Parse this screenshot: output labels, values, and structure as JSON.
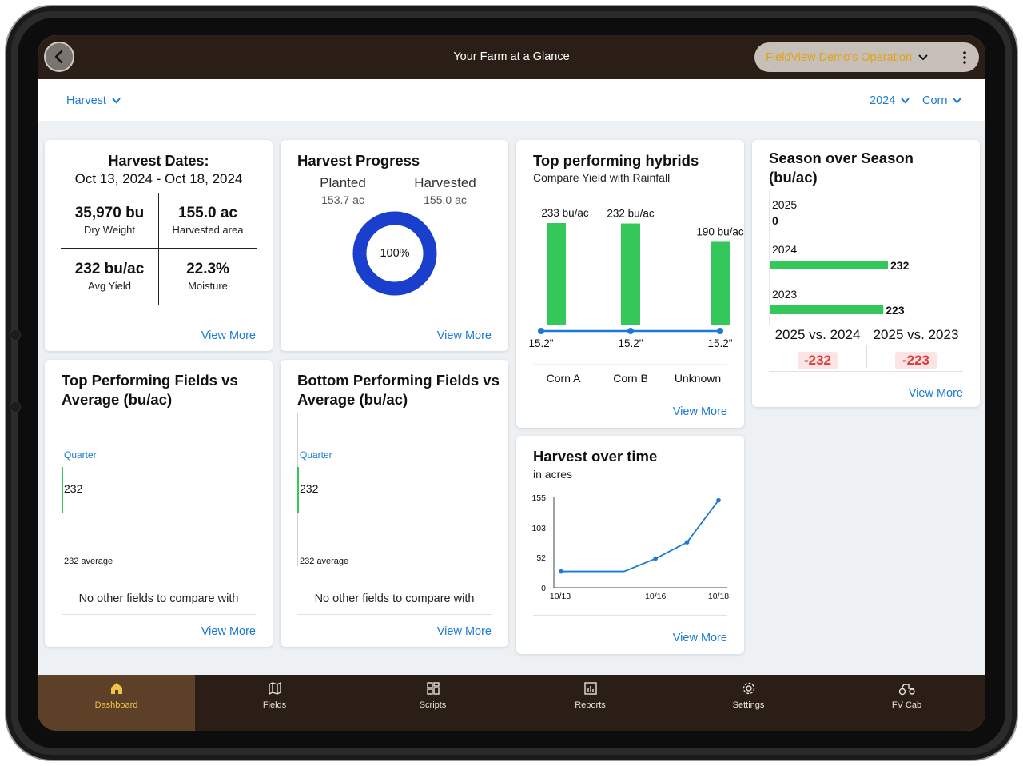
{
  "header": {
    "title": "Your Farm at a Glance",
    "operation": "FieldView Demo's Operation"
  },
  "filters": {
    "activity": "Harvest",
    "year": "2024",
    "crop": "Corn"
  },
  "harvest_dates": {
    "title": "Harvest Dates:",
    "range": "Oct 13, 2024 - Oct 18, 2024",
    "stats": [
      {
        "value": "35,970 bu",
        "label": "Dry Weight"
      },
      {
        "value": "155.0 ac",
        "label": "Harvested area"
      },
      {
        "value": "232 bu/ac",
        "label": "Avg Yield"
      },
      {
        "value": "22.3%",
        "label": "Moisture"
      }
    ],
    "view_more": "View More"
  },
  "harvest_progress": {
    "title": "Harvest Progress",
    "planted_label": "Planted",
    "planted_value": "153.7 ac",
    "harvested_label": "Harvested",
    "harvested_value": "155.0 ac",
    "percent_label": "100%",
    "percent": 100,
    "ring_color": "#1a3fcc",
    "view_more": "View More"
  },
  "top_hybrids": {
    "title": "Top performing hybrids",
    "subtitle": "Compare Yield with Rainfall",
    "view_more": "View More",
    "bar_color": "#34c759",
    "line_color": "#1a7ad6",
    "chart_data": {
      "type": "bar",
      "categories": [
        "Corn A",
        "Corn B",
        "Unknown"
      ],
      "values": [
        233,
        232,
        190
      ],
      "value_labels": [
        "233 bu/ac",
        "232 bu/ac",
        "190 bu/ac"
      ],
      "rainfall_labels": [
        "15.2\"",
        "15.2\"",
        "15.2\""
      ]
    }
  },
  "season_over_season": {
    "title_line1": "Season over Season",
    "title_line2": "(bu/ac)",
    "bar_color": "#34c759",
    "chart_data": {
      "type": "bar",
      "orientation": "horizontal",
      "categories": [
        "2025",
        "2024",
        "2023"
      ],
      "values": [
        0,
        232,
        223
      ]
    },
    "compare": [
      {
        "label": "2025 vs. 2024",
        "delta": "-232"
      },
      {
        "label": "2025 vs. 2023",
        "delta": "-223"
      }
    ],
    "view_more": "View More"
  },
  "top_fields": {
    "title_line1": "Top Performing Fields vs",
    "title_line2": "Average (bu/ac)",
    "quarter_label": "Quarter",
    "value": "232",
    "average_label": "232 average",
    "empty_message": "No other fields to compare with",
    "view_more": "View More"
  },
  "bottom_fields": {
    "title_line1": "Bottom Performing Fields vs",
    "title_line2": "Average (bu/ac)",
    "quarter_label": "Quarter",
    "value": "232",
    "average_label": "232 average",
    "empty_message": "No other fields to compare with",
    "view_more": "View More"
  },
  "harvest_over_time": {
    "title": "Harvest over time",
    "subtitle": "in acres",
    "view_more": "View More",
    "line_color": "#1a7ad6",
    "chart_data": {
      "type": "line",
      "x_tick_labels": [
        "10/13",
        "10/16",
        "10/18"
      ],
      "y_tick_labels": [
        "155",
        "103",
        "52",
        "0"
      ],
      "ylim": [
        0,
        155
      ],
      "x_days": [
        13,
        15,
        16,
        17,
        18
      ],
      "values": [
        28,
        28,
        50,
        78,
        150
      ]
    }
  },
  "nav": [
    {
      "label": "Dashboard",
      "icon": "home-icon"
    },
    {
      "label": "Fields",
      "icon": "map-icon"
    },
    {
      "label": "Scripts",
      "icon": "grid-icon"
    },
    {
      "label": "Reports",
      "icon": "report-icon"
    },
    {
      "label": "Settings",
      "icon": "gear-icon"
    },
    {
      "label": "FV Cab",
      "icon": "tractor-icon"
    }
  ]
}
